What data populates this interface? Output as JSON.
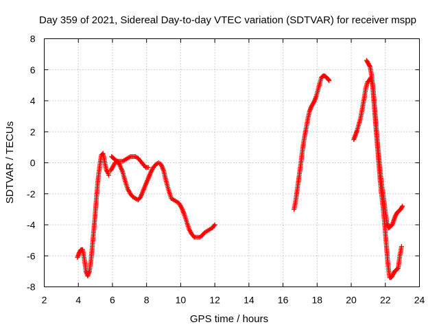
{
  "chart_data": {
    "type": "scatter",
    "title": "Day 359 of 2021, Sidereal Day-to-day VTEC variation (SDTVAR) for receiver mspp",
    "xlabel": "GPS time / hours",
    "ylabel": "SDTVAR / TECUs",
    "xlim": [
      2,
      24
    ],
    "ylim": [
      -8,
      8
    ],
    "xticks": [
      2,
      4,
      6,
      8,
      10,
      12,
      14,
      16,
      18,
      20,
      22,
      24
    ],
    "yticks": [
      -8,
      -6,
      -4,
      -2,
      0,
      2,
      4,
      6,
      8
    ],
    "grid": true,
    "marker": "+",
    "color": "#ff0000",
    "series": [
      {
        "name": "SDTVAR",
        "segments": [
          {
            "x": [
              3.95,
              4.05,
              4.15,
              4.25,
              4.35,
              4.45,
              4.55,
              4.65,
              4.75,
              4.85,
              4.95,
              5.05,
              5.15,
              5.25,
              5.35,
              5.45,
              5.55,
              5.65,
              5.72,
              5.78
            ],
            "y": [
              -6.1,
              -5.8,
              -5.6,
              -5.6,
              -6.2,
              -7.0,
              -7.3,
              -7.0,
              -6.2,
              -5.0,
              -3.8,
              -2.4,
              -1.1,
              -0.2,
              0.5,
              0.6,
              0.0,
              -0.5,
              -0.6,
              -0.8
            ]
          },
          {
            "x": [
              5.95,
              6.05,
              6.15,
              6.3,
              6.45,
              6.6,
              6.75,
              6.9,
              7.05,
              7.2,
              7.35,
              7.5,
              7.65,
              7.8,
              7.95,
              8.1,
              8.25,
              8.4,
              8.55,
              8.7,
              8.85,
              9.0,
              9.15,
              9.3,
              9.45,
              9.6,
              9.75,
              9.9,
              10.05,
              10.2,
              10.35,
              10.5,
              10.65,
              10.8,
              10.95,
              11.1,
              11.25,
              11.4,
              11.55,
              11.7,
              11.85,
              12.0
            ],
            "y": [
              0.4,
              0.3,
              0.2,
              0.1,
              -0.2,
              -0.6,
              -1.2,
              -1.7,
              -2.0,
              -2.2,
              -2.3,
              -2.4,
              -2.2,
              -1.8,
              -1.4,
              -1.0,
              -0.6,
              -0.3,
              -0.1,
              0.0,
              -0.1,
              -0.5,
              -1.2,
              -1.8,
              -2.3,
              -2.4,
              -2.5,
              -2.6,
              -2.9,
              -3.3,
              -3.8,
              -4.3,
              -4.6,
              -4.8,
              -4.8,
              -4.8,
              -4.7,
              -4.5,
              -4.4,
              -4.3,
              -4.2,
              -4.0
            ]
          },
          {
            "x": [
              5.9,
              6.0,
              6.15,
              6.3,
              6.45,
              6.6,
              6.75,
              6.9,
              7.05,
              7.2,
              7.35,
              7.5,
              7.65,
              7.8,
              7.95,
              8.1
            ],
            "y": [
              -0.5,
              -0.3,
              0.0,
              0.1,
              0.1,
              0.1,
              0.2,
              0.3,
              0.4,
              0.4,
              0.4,
              0.3,
              0.1,
              -0.1,
              -0.3,
              -0.3
            ]
          },
          {
            "x": [
              16.65,
              16.75,
              16.85,
              16.95,
              17.05,
              17.15,
              17.25,
              17.35,
              17.45,
              17.55,
              17.65,
              17.75,
              17.85,
              17.95,
              18.05,
              18.15,
              18.25,
              18.35,
              18.45,
              18.55,
              18.65,
              18.7
            ],
            "y": [
              -3.0,
              -2.4,
              -1.6,
              -0.8,
              0.0,
              0.9,
              1.6,
              2.2,
              2.8,
              3.3,
              3.6,
              3.8,
              4.0,
              4.3,
              4.7,
              5.1,
              5.5,
              5.6,
              5.6,
              5.5,
              5.4,
              5.3
            ]
          },
          {
            "x": [
              20.15,
              20.25,
              20.35,
              20.45,
              20.55,
              20.65,
              20.75,
              20.85,
              20.95,
              21.05,
              21.15,
              21.25,
              21.35,
              21.45,
              21.55,
              21.65,
              21.75,
              21.85,
              21.95,
              22.05,
              22.15,
              22.25,
              22.35,
              22.45,
              22.55,
              22.65,
              22.75,
              22.85,
              22.95
            ],
            "y": [
              1.5,
              1.8,
              2.1,
              2.5,
              2.9,
              3.5,
              4.1,
              4.8,
              5.2,
              5.3,
              5.5,
              5.0,
              3.7,
              2.2,
              0.9,
              -0.5,
              -1.8,
              -2.7,
              -3.8,
              -5.2,
              -6.5,
              -7.4,
              -7.4,
              -7.2,
              -7.0,
              -6.9,
              -6.8,
              -6.0,
              -5.4
            ]
          },
          {
            "x": [
              20.9,
              21.0,
              21.1,
              21.2,
              21.3,
              21.4,
              21.5,
              21.6,
              21.7,
              21.8,
              21.9,
              22.0,
              22.1,
              22.2,
              22.3,
              22.4,
              22.5,
              22.6,
              22.7,
              22.8,
              22.9,
              23.0
            ],
            "y": [
              6.6,
              6.4,
              6.2,
              5.6,
              4.6,
              3.2,
              1.8,
              0.6,
              -0.6,
              -1.5,
              -2.3,
              -3.2,
              -3.9,
              -4.2,
              -4.1,
              -4.0,
              -3.7,
              -3.4,
              -3.2,
              -3.1,
              -3.0,
              -2.8
            ]
          }
        ]
      }
    ]
  }
}
